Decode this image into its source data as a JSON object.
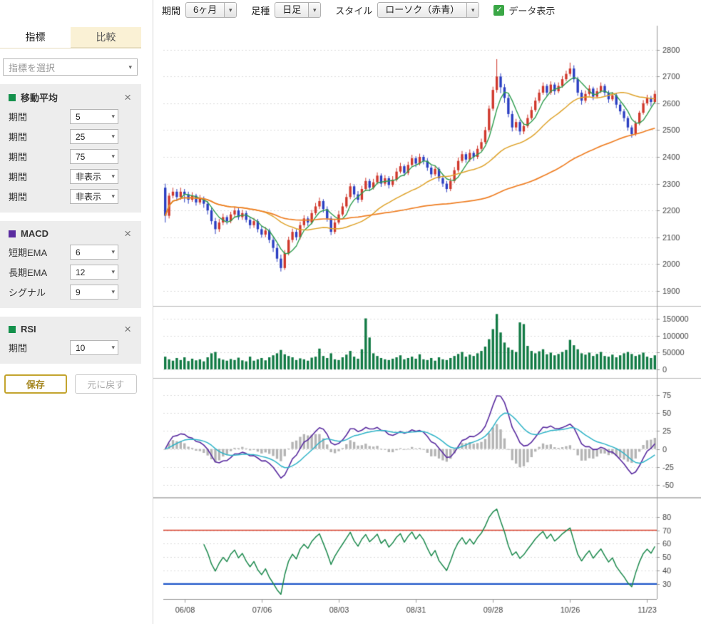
{
  "icons": {
    "caret": "▾",
    "close": "×",
    "check": "✓"
  },
  "ui_colors": {
    "checkbox_green": "#3aa746",
    "save_border": "#c3a42e",
    "save_text": "#a3841c",
    "tab_inactive_bg": "#faf1d5"
  },
  "sidebar": {
    "tabs": [
      {
        "label": "指標",
        "active": true
      },
      {
        "label": "比較",
        "active": false
      }
    ],
    "indicator_select_placeholder": "指標を選択",
    "panels": [
      {
        "id": "ma",
        "title": "移動平均",
        "swatch_color": "#14914c",
        "rows": [
          {
            "label": "期間",
            "value": "5"
          },
          {
            "label": "期間",
            "value": "25"
          },
          {
            "label": "期間",
            "value": "75"
          },
          {
            "label": "期間",
            "value": "非表示"
          },
          {
            "label": "期間",
            "value": "非表示"
          }
        ]
      },
      {
        "id": "macd",
        "title": "MACD",
        "swatch_color": "#5a2ca0",
        "rows": [
          {
            "label": "短期EMA",
            "value": "6"
          },
          {
            "label": "長期EMA",
            "value": "12"
          },
          {
            "label": "シグナル",
            "value": "9"
          }
        ]
      },
      {
        "id": "rsi",
        "title": "RSI",
        "swatch_color": "#14914c",
        "rows": [
          {
            "label": "期間",
            "value": "10"
          }
        ]
      }
    ],
    "save_button": "保存",
    "reset_button": "元に戻す"
  },
  "toolbar": {
    "period_label": "期間",
    "period_value": "6ヶ月",
    "bartype_label": "足種",
    "bartype_value": "日足",
    "style_label": "スタイル",
    "style_value": "ローソク（赤青）",
    "data_display_label": "データ表示",
    "data_display_checked": true
  },
  "chart_data": {
    "type": "candlestick",
    "x_tick_labels": [
      "06/08",
      "07/06",
      "08/03",
      "08/31",
      "09/28",
      "10/26",
      "11/23"
    ],
    "x_tick_indices": [
      5,
      25,
      45,
      65,
      85,
      105,
      125
    ],
    "ma_periods": [
      5,
      25,
      75
    ],
    "panels": {
      "price": {
        "ylim": [
          1862,
          2890
        ],
        "yticks": [
          1900,
          2000,
          2100,
          2200,
          2300,
          2400,
          2500,
          2600,
          2700,
          2800
        ]
      },
      "volume": {
        "ylim": [
          0,
          170000
        ],
        "yticks": [
          0,
          50000,
          100000,
          150000
        ]
      },
      "macd": {
        "ylim": [
          -62,
          87
        ],
        "yticks": [
          -50,
          -25,
          0,
          25,
          50,
          75
        ],
        "params": {
          "fast": 6,
          "slow": 12,
          "signal": 9
        }
      },
      "rsi": {
        "ylim": [
          22,
          91
        ],
        "yticks": [
          30,
          40,
          50,
          60,
          70,
          80
        ],
        "period": 10,
        "upper": 70,
        "lower": 30
      }
    },
    "colors": {
      "up": "#d0382c",
      "down": "#2b3fc2",
      "ma_short": "#2f9e4f",
      "ma_mid": "#dfa32b",
      "ma_long": "#ef7f24",
      "volume": "#117a44",
      "macd_line": "#5a2ca0",
      "signal_line": "#2fb4c8",
      "hist": "#b4b4b4",
      "rsi_line": "#1d8a4e",
      "rsi_upper": "#d9402c",
      "rsi_lower": "#1f57c9",
      "grid": "#dcdcdc",
      "axis_line": "#999999",
      "separator": "#bbbbbb",
      "axis_text": "#444444"
    },
    "candles": [
      [
        2285,
        2300,
        2155,
        2180
      ],
      [
        2180,
        2265,
        2170,
        2255
      ],
      [
        2255,
        2285,
        2245,
        2270
      ],
      [
        2270,
        2280,
        2235,
        2250
      ],
      [
        2250,
        2285,
        2240,
        2270
      ],
      [
        2270,
        2280,
        2230,
        2260
      ],
      [
        2260,
        2270,
        2225,
        2240
      ],
      [
        2240,
        2268,
        2232,
        2255
      ],
      [
        2255,
        2262,
        2218,
        2230
      ],
      [
        2230,
        2258,
        2222,
        2245
      ],
      [
        2245,
        2252,
        2210,
        2225
      ],
      [
        2225,
        2235,
        2185,
        2200
      ],
      [
        2200,
        2210,
        2148,
        2160
      ],
      [
        2160,
        2172,
        2112,
        2130
      ],
      [
        2130,
        2168,
        2120,
        2155
      ],
      [
        2155,
        2188,
        2145,
        2175
      ],
      [
        2175,
        2182,
        2148,
        2160
      ],
      [
        2160,
        2195,
        2152,
        2185
      ],
      [
        2185,
        2212,
        2175,
        2200
      ],
      [
        2200,
        2208,
        2165,
        2175
      ],
      [
        2175,
        2202,
        2165,
        2190
      ],
      [
        2190,
        2198,
        2155,
        2165
      ],
      [
        2165,
        2175,
        2132,
        2145
      ],
      [
        2145,
        2172,
        2135,
        2160
      ],
      [
        2160,
        2168,
        2118,
        2130
      ],
      [
        2130,
        2142,
        2098,
        2110
      ],
      [
        2110,
        2138,
        2100,
        2125
      ],
      [
        2125,
        2132,
        2078,
        2090
      ],
      [
        2090,
        2102,
        2045,
        2060
      ],
      [
        2060,
        2075,
        2008,
        2020
      ],
      [
        2020,
        2035,
        1972,
        1985
      ],
      [
        1985,
        2052,
        1978,
        2040
      ],
      [
        2040,
        2102,
        2032,
        2090
      ],
      [
        2090,
        2132,
        2080,
        2120
      ],
      [
        2120,
        2130,
        2088,
        2100
      ],
      [
        2100,
        2158,
        2092,
        2145
      ],
      [
        2145,
        2182,
        2135,
        2170
      ],
      [
        2170,
        2178,
        2142,
        2155
      ],
      [
        2155,
        2202,
        2148,
        2190
      ],
      [
        2190,
        2228,
        2182,
        2215
      ],
      [
        2215,
        2248,
        2205,
        2235
      ],
      [
        2235,
        2242,
        2192,
        2205
      ],
      [
        2205,
        2215,
        2158,
        2170
      ],
      [
        2170,
        2178,
        2108,
        2120
      ],
      [
        2120,
        2168,
        2112,
        2155
      ],
      [
        2155,
        2198,
        2148,
        2185
      ],
      [
        2185,
        2228,
        2178,
        2215
      ],
      [
        2215,
        2262,
        2208,
        2250
      ],
      [
        2250,
        2302,
        2242,
        2290
      ],
      [
        2290,
        2298,
        2248,
        2260
      ],
      [
        2260,
        2272,
        2228,
        2240
      ],
      [
        2240,
        2292,
        2232,
        2280
      ],
      [
        2280,
        2322,
        2272,
        2310
      ],
      [
        2310,
        2318,
        2272,
        2285
      ],
      [
        2285,
        2318,
        2278,
        2305
      ],
      [
        2305,
        2342,
        2298,
        2330
      ],
      [
        2330,
        2338,
        2288,
        2300
      ],
      [
        2300,
        2332,
        2292,
        2320
      ],
      [
        2320,
        2328,
        2282,
        2295
      ],
      [
        2295,
        2328,
        2288,
        2315
      ],
      [
        2315,
        2358,
        2308,
        2345
      ],
      [
        2345,
        2378,
        2338,
        2365
      ],
      [
        2365,
        2372,
        2328,
        2340
      ],
      [
        2340,
        2382,
        2332,
        2370
      ],
      [
        2370,
        2408,
        2362,
        2395
      ],
      [
        2395,
        2402,
        2362,
        2375
      ],
      [
        2375,
        2412,
        2368,
        2400
      ],
      [
        2400,
        2408,
        2372,
        2385
      ],
      [
        2385,
        2395,
        2348,
        2360
      ],
      [
        2360,
        2368,
        2322,
        2335
      ],
      [
        2335,
        2368,
        2328,
        2355
      ],
      [
        2355,
        2362,
        2308,
        2320
      ],
      [
        2320,
        2330,
        2288,
        2300
      ],
      [
        2300,
        2310,
        2268,
        2280
      ],
      [
        2280,
        2322,
        2272,
        2310
      ],
      [
        2310,
        2362,
        2302,
        2350
      ],
      [
        2350,
        2398,
        2342,
        2385
      ],
      [
        2385,
        2422,
        2378,
        2410
      ],
      [
        2410,
        2418,
        2378,
        2390
      ],
      [
        2390,
        2428,
        2382,
        2415
      ],
      [
        2415,
        2422,
        2385,
        2400
      ],
      [
        2400,
        2442,
        2392,
        2430
      ],
      [
        2430,
        2468,
        2422,
        2455
      ],
      [
        2455,
        2512,
        2448,
        2500
      ],
      [
        2500,
        2592,
        2492,
        2580
      ],
      [
        2580,
        2662,
        2572,
        2650
      ],
      [
        2650,
        2765,
        2640,
        2700
      ],
      [
        2700,
        2712,
        2638,
        2660
      ],
      [
        2660,
        2672,
        2602,
        2620
      ],
      [
        2620,
        2632,
        2548,
        2560
      ],
      [
        2560,
        2572,
        2495,
        2510
      ],
      [
        2510,
        2542,
        2498,
        2530
      ],
      [
        2530,
        2538,
        2482,
        2495
      ],
      [
        2495,
        2528,
        2485,
        2515
      ],
      [
        2515,
        2558,
        2508,
        2545
      ],
      [
        2545,
        2588,
        2538,
        2575
      ],
      [
        2575,
        2622,
        2568,
        2610
      ],
      [
        2610,
        2652,
        2602,
        2640
      ],
      [
        2640,
        2678,
        2632,
        2665
      ],
      [
        2665,
        2672,
        2628,
        2640
      ],
      [
        2640,
        2682,
        2632,
        2670
      ],
      [
        2670,
        2678,
        2632,
        2645
      ],
      [
        2645,
        2678,
        2638,
        2665
      ],
      [
        2665,
        2702,
        2658,
        2690
      ],
      [
        2690,
        2722,
        2682,
        2710
      ],
      [
        2710,
        2752,
        2702,
        2730
      ],
      [
        2730,
        2742,
        2678,
        2690
      ],
      [
        2690,
        2698,
        2628,
        2640
      ],
      [
        2640,
        2650,
        2595,
        2610
      ],
      [
        2610,
        2648,
        2602,
        2635
      ],
      [
        2635,
        2668,
        2628,
        2655
      ],
      [
        2655,
        2662,
        2612,
        2625
      ],
      [
        2625,
        2658,
        2618,
        2645
      ],
      [
        2645,
        2678,
        2638,
        2665
      ],
      [
        2665,
        2672,
        2628,
        2640
      ],
      [
        2640,
        2648,
        2602,
        2615
      ],
      [
        2615,
        2642,
        2608,
        2630
      ],
      [
        2630,
        2638,
        2582,
        2595
      ],
      [
        2595,
        2605,
        2558,
        2570
      ],
      [
        2570,
        2578,
        2532,
        2545
      ],
      [
        2545,
        2552,
        2498,
        2510
      ],
      [
        2510,
        2518,
        2472,
        2485
      ],
      [
        2485,
        2535,
        2478,
        2525
      ],
      [
        2525,
        2572,
        2518,
        2565
      ],
      [
        2565,
        2612,
        2558,
        2600
      ],
      [
        2600,
        2632,
        2592,
        2620
      ],
      [
        2620,
        2628,
        2588,
        2605
      ],
      [
        2605,
        2648,
        2598,
        2635
      ]
    ],
    "volumes": [
      38000,
      30000,
      26000,
      34000,
      28000,
      36000,
      25000,
      32000,
      27000,
      30000,
      24000,
      36000,
      48000,
      52000,
      33000,
      29000,
      26000,
      31000,
      28000,
      35000,
      27000,
      24000,
      38000,
      26000,
      30000,
      34000,
      27000,
      36000,
      42000,
      48000,
      58000,
      45000,
      40000,
      36000,
      28000,
      33000,
      30000,
      26000,
      35000,
      38000,
      62000,
      40000,
      34000,
      48000,
      30000,
      28000,
      36000,
      44000,
      55000,
      38000,
      32000,
      60000,
      152000,
      95000,
      48000,
      40000,
      34000,
      30000,
      28000,
      32000,
      36000,
      42000,
      30000,
      34000,
      38000,
      32000,
      45000,
      30000,
      28000,
      34000,
      26000,
      36000,
      30000,
      28000,
      34000,
      40000,
      46000,
      52000,
      38000,
      44000,
      40000,
      48000,
      55000,
      68000,
      90000,
      120000,
      165000,
      110000,
      80000,
      65000,
      58000,
      52000,
      140000,
      135000,
      70000,
      55000,
      48000,
      54000,
      60000,
      45000,
      50000,
      42000,
      46000,
      52000,
      58000,
      88000,
      72000,
      60000,
      48000,
      44000,
      50000,
      40000,
      46000,
      52000,
      40000,
      38000,
      44000,
      36000,
      42000,
      48000,
      52000,
      46000,
      40000,
      44000,
      50000,
      38000,
      34000,
      42000
    ]
  }
}
